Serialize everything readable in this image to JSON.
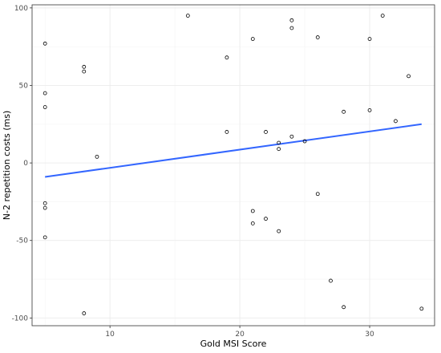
{
  "chart_data": {
    "type": "scatter",
    "title": "",
    "xlabel": "Gold MSI Score",
    "ylabel": "N-2 repetition costs (ms)",
    "xlim": [
      4,
      35
    ],
    "ylim": [
      -105,
      102
    ],
    "xticks": [
      10,
      20,
      30
    ],
    "yticks": [
      -100,
      -50,
      0,
      50,
      100
    ],
    "xtick_labels": [
      "10",
      "20",
      "30"
    ],
    "ytick_labels": [
      "-100",
      "-50",
      "0",
      "50",
      "100"
    ],
    "grid": true,
    "points": [
      {
        "x": 5,
        "y": 77
      },
      {
        "x": 5,
        "y": 45
      },
      {
        "x": 5,
        "y": 36
      },
      {
        "x": 5,
        "y": -26
      },
      {
        "x": 5,
        "y": -29
      },
      {
        "x": 5,
        "y": -48
      },
      {
        "x": 8,
        "y": 62
      },
      {
        "x": 8,
        "y": 59
      },
      {
        "x": 8,
        "y": -97
      },
      {
        "x": 9,
        "y": 4
      },
      {
        "x": 16,
        "y": 95
      },
      {
        "x": 19,
        "y": 68
      },
      {
        "x": 19,
        "y": 20
      },
      {
        "x": 21,
        "y": 80
      },
      {
        "x": 21,
        "y": -31
      },
      {
        "x": 21,
        "y": -39
      },
      {
        "x": 22,
        "y": 20
      },
      {
        "x": 22,
        "y": -36
      },
      {
        "x": 23,
        "y": 13
      },
      {
        "x": 23,
        "y": 9
      },
      {
        "x": 23,
        "y": -44
      },
      {
        "x": 24,
        "y": 92
      },
      {
        "x": 24,
        "y": 87
      },
      {
        "x": 24,
        "y": 17
      },
      {
        "x": 25,
        "y": 14
      },
      {
        "x": 26,
        "y": 81
      },
      {
        "x": 26,
        "y": -20
      },
      {
        "x": 27,
        "y": -76
      },
      {
        "x": 28,
        "y": 33
      },
      {
        "x": 28,
        "y": -93
      },
      {
        "x": 30,
        "y": 80
      },
      {
        "x": 30,
        "y": 34
      },
      {
        "x": 31,
        "y": 95
      },
      {
        "x": 32,
        "y": 27
      },
      {
        "x": 33,
        "y": 56
      },
      {
        "x": 34,
        "y": -94
      }
    ],
    "fit_line": {
      "x": [
        5,
        34
      ],
      "y": [
        -9,
        25
      ]
    },
    "colors": {
      "fit_line": "#3366ff",
      "points": "#000000",
      "grid": "#ebebeb",
      "background": "#ffffff"
    }
  }
}
